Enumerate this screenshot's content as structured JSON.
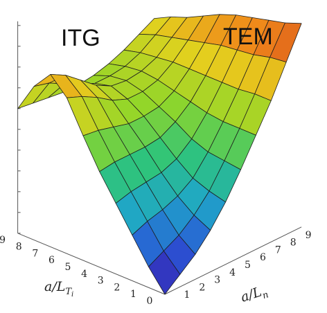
{
  "chart_data": {
    "type": "surface",
    "title": "",
    "annotations": [
      {
        "name": "itg",
        "text": "ITG"
      },
      {
        "name": "tem",
        "text": "TEM"
      }
    ],
    "x_axis": {
      "label_base": "a/L",
      "label_sub": "T",
      "label_subsub": "i",
      "ticks": [
        "0",
        "1",
        "2",
        "3",
        "4",
        "5",
        "6",
        "7",
        "8",
        "9"
      ]
    },
    "y_axis": {
      "label_base": "a/L",
      "label_sub": "n",
      "ticks": [
        "0",
        "1",
        "2",
        "3",
        "4",
        "5",
        "6",
        "7",
        "8",
        "9"
      ]
    },
    "z_axis": {
      "label": "",
      "ticks_labeled": false
    },
    "grid": {
      "x": [
        0,
        1,
        2,
        3,
        4,
        5,
        6,
        7,
        8,
        9
      ],
      "y": [
        0,
        1,
        2,
        3,
        4,
        5,
        6,
        7,
        8,
        9
      ]
    },
    "z_range": [
      0,
      1
    ],
    "z_values": [
      [
        0.0,
        0.06,
        0.12,
        0.2,
        0.3,
        0.42,
        0.55,
        0.68,
        0.83,
        0.98
      ],
      [
        0.1,
        0.14,
        0.18,
        0.24,
        0.32,
        0.43,
        0.55,
        0.68,
        0.82,
        0.95
      ],
      [
        0.22,
        0.25,
        0.27,
        0.3,
        0.35,
        0.44,
        0.55,
        0.67,
        0.8,
        0.93
      ],
      [
        0.34,
        0.36,
        0.37,
        0.38,
        0.41,
        0.47,
        0.56,
        0.67,
        0.79,
        0.91
      ],
      [
        0.46,
        0.47,
        0.47,
        0.47,
        0.48,
        0.52,
        0.58,
        0.67,
        0.78,
        0.89
      ],
      [
        0.6,
        0.59,
        0.57,
        0.55,
        0.55,
        0.56,
        0.6,
        0.67,
        0.76,
        0.86
      ],
      [
        0.75,
        0.72,
        0.68,
        0.63,
        0.6,
        0.6,
        0.62,
        0.67,
        0.74,
        0.82
      ],
      [
        0.83,
        0.79,
        0.73,
        0.67,
        0.63,
        0.62,
        0.63,
        0.66,
        0.72,
        0.78
      ],
      [
        0.74,
        0.72,
        0.68,
        0.64,
        0.61,
        0.61,
        0.62,
        0.65,
        0.7,
        0.75
      ],
      [
        0.6,
        0.59,
        0.58,
        0.57,
        0.57,
        0.58,
        0.6,
        0.63,
        0.67,
        0.71
      ]
    ],
    "colormap": [
      "#3b14a8",
      "#2a56d6",
      "#1fa6c8",
      "#2fc47a",
      "#8fd62a",
      "#e3d11e",
      "#f08a1a",
      "#c8231e"
    ]
  }
}
